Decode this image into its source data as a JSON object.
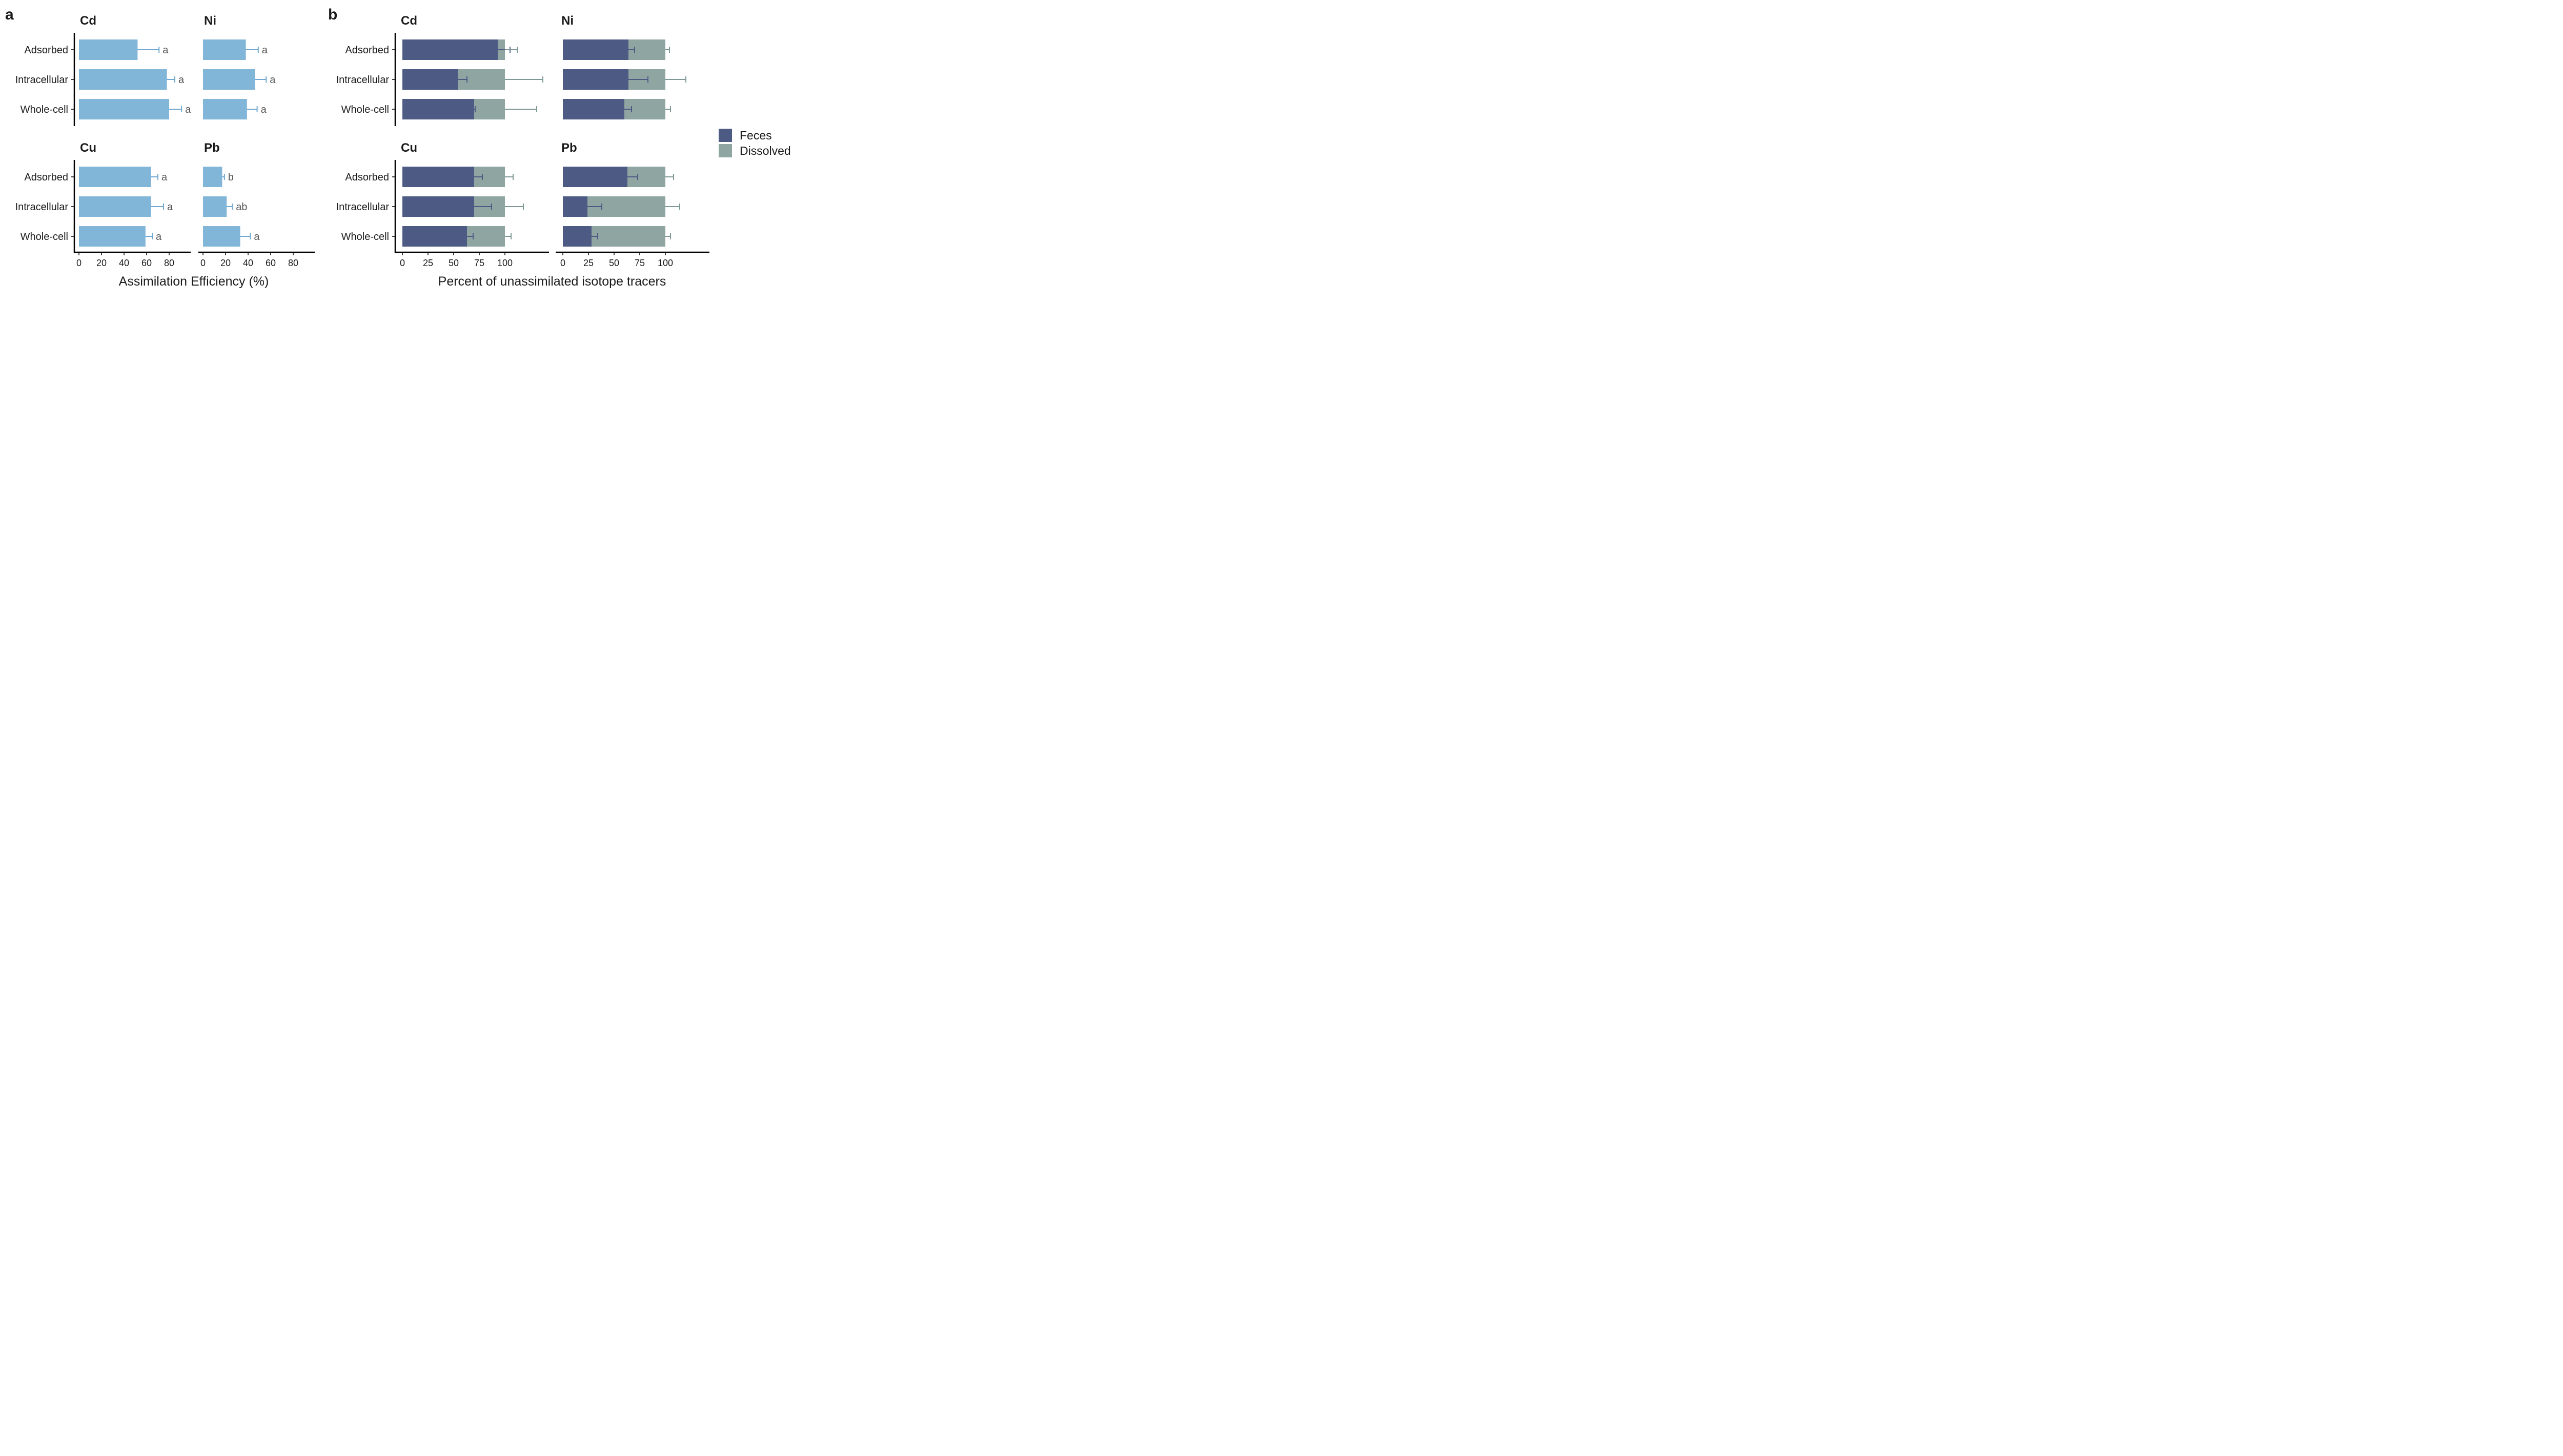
{
  "panel_labels": {
    "a": "a",
    "b": "b"
  },
  "axis_titles": {
    "a_x": "Assimilation Efficiency (%)",
    "b_x": "Percent of unassimilated isotope tracers"
  },
  "legend": {
    "items": [
      {
        "label": "Feces",
        "color": "#4d5a84"
      },
      {
        "label": "Dissolved",
        "color": "#8fa5a2"
      }
    ]
  },
  "colors": {
    "ae_bar": "#82b6d8",
    "ae_error": "#6fa8d0",
    "feces": "#4d5a84",
    "dissolved": "#8fa5a2",
    "feces_error": "#4d5a84",
    "dissolved_error": "#7e9895"
  },
  "chart_data": [
    {
      "panel": "a",
      "type": "bar",
      "orientation": "horizontal",
      "categories": [
        "Adsorbed",
        "Intracellular",
        "Whole-cell"
      ],
      "xlabel": "Assimilation Efficiency (%)",
      "xlim": [
        0,
        95
      ],
      "xticks": [
        0,
        20,
        40,
        60,
        80
      ],
      "facets": [
        {
          "title": "Cd",
          "values": [
            52,
            78,
            80
          ],
          "errors": [
            19,
            7,
            11
          ],
          "letters": [
            "a",
            "a",
            "a"
          ]
        },
        {
          "title": "Ni",
          "values": [
            38,
            46,
            39
          ],
          "errors": [
            11,
            10,
            9
          ],
          "letters": [
            "a",
            "a",
            "a"
          ]
        },
        {
          "title": "Cu",
          "values": [
            64,
            64,
            59
          ],
          "errors": [
            6,
            11,
            6
          ],
          "letters": [
            "a",
            "a",
            "a"
          ]
        },
        {
          "title": "Pb",
          "values": [
            17,
            21,
            33
          ],
          "errors": [
            2,
            5,
            9
          ],
          "letters": [
            "b",
            "ab",
            "a"
          ]
        }
      ]
    },
    {
      "panel": "b",
      "type": "bar",
      "stacked": true,
      "orientation": "horizontal",
      "categories": [
        "Adsorbed",
        "Intracellular",
        "Whole-cell"
      ],
      "xlabel": "Percent of unassimilated isotope tracers",
      "xlim": [
        0,
        140
      ],
      "xticks": [
        0,
        25,
        50,
        75,
        100
      ],
      "series_names": [
        "Feces",
        "Dissolved"
      ],
      "facets": [
        {
          "title": "Cd",
          "feces": [
            93,
            54,
            70
          ],
          "feces_error": [
            12,
            9,
            1
          ],
          "dissolved_error": [
            12,
            37,
            31
          ]
        },
        {
          "title": "Ni",
          "feces": [
            64,
            64,
            60
          ],
          "feces_error": [
            6,
            19,
            7
          ],
          "dissolved_error": [
            4,
            20,
            5
          ]
        },
        {
          "title": "Cu",
          "feces": [
            70,
            70,
            63
          ],
          "feces_error": [
            8,
            17,
            6
          ],
          "dissolved_error": [
            8,
            18,
            6
          ]
        },
        {
          "title": "Pb",
          "feces": [
            63,
            24,
            28
          ],
          "feces_error": [
            10,
            14,
            6
          ],
          "dissolved_error": [
            8,
            14,
            5
          ]
        }
      ]
    }
  ]
}
